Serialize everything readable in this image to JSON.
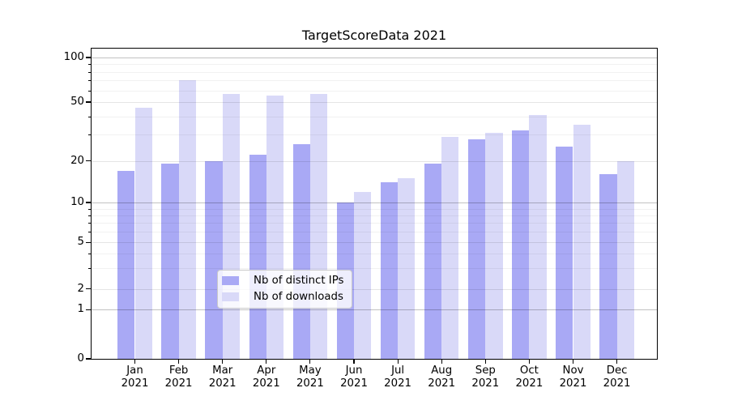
{
  "title": "TargetScoreData 2021",
  "chart_data": {
    "type": "bar",
    "title": "TargetScoreData 2021",
    "categories": [
      "Jan 2021",
      "Feb 2021",
      "Mar 2021",
      "Apr 2021",
      "May 2021",
      "Jun 2021",
      "Jul 2021",
      "Aug 2021",
      "Sep 2021",
      "Oct 2021",
      "Nov 2021",
      "Dec 2021"
    ],
    "series": [
      {
        "name": "Nb of distinct IPs",
        "color": "#a9a9f5",
        "values": [
          17,
          19,
          20,
          22,
          26,
          10,
          14,
          19,
          28,
          32,
          25,
          16
        ]
      },
      {
        "name": "Nb of downloads",
        "color": "#d9d9f8",
        "values": [
          46,
          70,
          57,
          55,
          57,
          12,
          15,
          29,
          31,
          41,
          35,
          20
        ]
      }
    ],
    "xlabel": "",
    "ylabel": "",
    "yscale": "symlog",
    "y_ticks": [
      0,
      1,
      2,
      5,
      10,
      20,
      50,
      100
    ],
    "y_minor_ticks": [
      3,
      4,
      6,
      7,
      8,
      9,
      30,
      40,
      60,
      70,
      80,
      90
    ],
    "ylim": [
      0,
      115
    ],
    "grid": true,
    "legend_position": "lower center",
    "colors": {
      "bars_primary": "#a9a9f5",
      "bars_secondary": "#d9d9f8",
      "grid_major": "#b8b8b8",
      "grid_minor": "#ebebeb",
      "axis": "#000000"
    }
  }
}
